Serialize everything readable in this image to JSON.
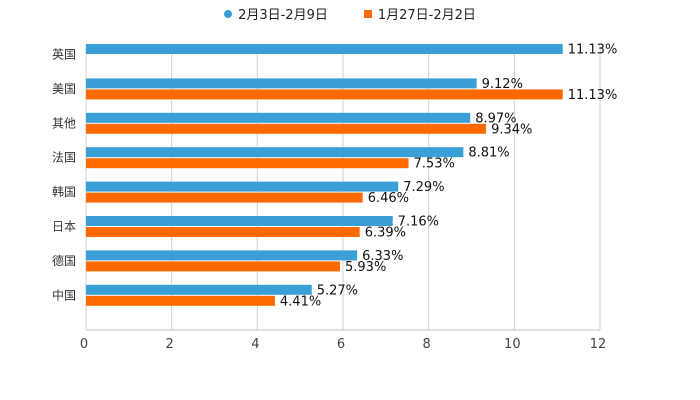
{
  "chart_data": {
    "type": "bar",
    "orientation": "horizontal",
    "categories": [
      "英国",
      "美国",
      "其他",
      "法国",
      "韩国",
      "日本",
      "德国",
      "中国"
    ],
    "series": [
      {
        "name": "2月3日-2月9日",
        "color": "#3a9fd6",
        "values": [
          11.13,
          9.12,
          8.97,
          8.81,
          7.29,
          7.16,
          6.33,
          5.27
        ],
        "labels": [
          "11.13%",
          "9.12%",
          "8.97%",
          "8.81%",
          "7.29%",
          "7.16%",
          "6.33%",
          "5.27%"
        ]
      },
      {
        "name": "1月27日-2月2日",
        "color": "#ff6a00",
        "values": [
          null,
          11.13,
          9.34,
          7.53,
          6.46,
          6.39,
          5.93,
          4.41
        ],
        "labels": [
          "",
          "11.13%",
          "9.34%",
          "7.53%",
          "6.46%",
          "6.39%",
          "5.93%",
          "4.41%"
        ]
      }
    ],
    "xlim": [
      0,
      12
    ],
    "xticks": [
      "0",
      "2",
      "4",
      "6",
      "8",
      "10",
      "12"
    ],
    "grid": true,
    "legend": "top-center",
    "title": "",
    "xlabel": "",
    "ylabel": ""
  }
}
